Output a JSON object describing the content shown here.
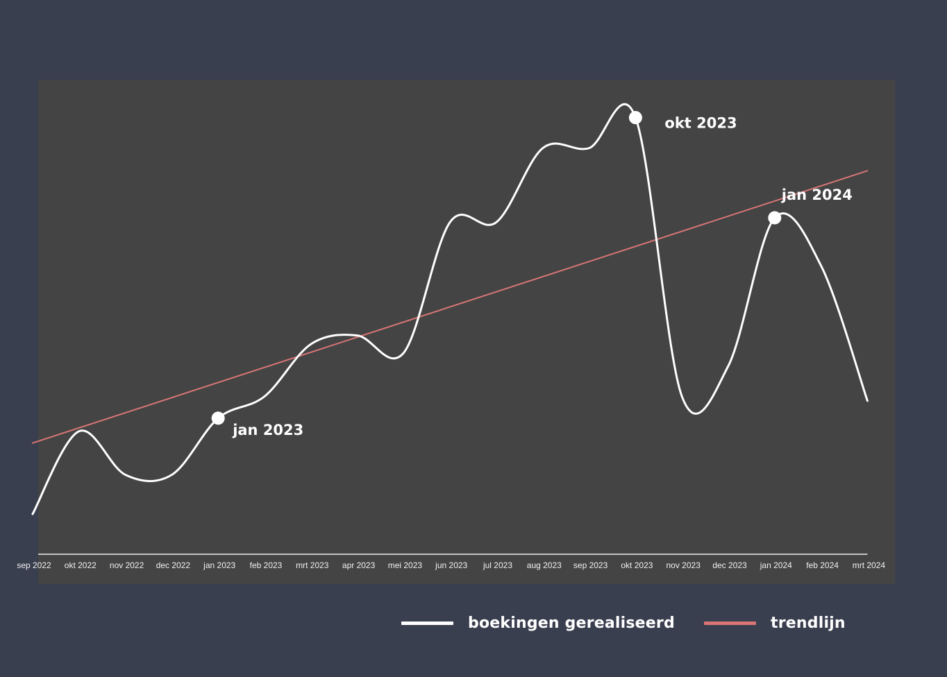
{
  "chart_data": {
    "type": "line",
    "title": "",
    "xlabel": "",
    "ylabel": "",
    "categories": [
      "sep 2022",
      "okt 2022",
      "nov 2022",
      "dec 2022",
      "jan 2023",
      "feb 2023",
      "mrt 2023",
      "apr 2023",
      "mei 2023",
      "jun 2023",
      "jul 2023",
      "aug 2023",
      "sep 2023",
      "okt 2023",
      "nov 2023",
      "dec 2023",
      "jan 2024",
      "feb 2024",
      "mrt 2024"
    ],
    "ylim": [
      0,
      100
    ],
    "grid": false,
    "legend_position": "bottom",
    "series": [
      {
        "name": "boekingen gerealiseerd",
        "color": "#ffffff",
        "values": [
          7,
          26,
          16,
          16,
          29,
          34,
          46,
          48,
          44,
          74,
          74,
          91,
          91,
          98,
          34,
          41,
          75,
          64,
          33
        ]
      },
      {
        "name": "trendlijn",
        "color": "#d97575",
        "values": [
          23.3,
          26.8,
          30.3,
          33.8,
          37.2,
          40.7,
          44.2,
          47.6,
          51.1,
          54.6,
          58.0,
          61.5,
          65.0,
          68.4,
          71.9,
          75.4,
          78.9,
          82.3,
          85.8
        ]
      }
    ],
    "annotations": [
      {
        "label": "jan 2023",
        "x": "jan 2023",
        "y": 29
      },
      {
        "label": "okt 2023",
        "x": "okt 2023",
        "y": 98
      },
      {
        "label": "jan 2024",
        "x": "jan 2024",
        "y": 75
      }
    ]
  },
  "legend": {
    "items": [
      {
        "label": "boekingen gerealiseerd",
        "color": "#ffffff"
      },
      {
        "label": "trendlijn",
        "color": "#d97575"
      }
    ]
  },
  "colors": {
    "page_background": "#3a3f4f",
    "plot_background": "#444444",
    "axis": "#eeeeee"
  }
}
